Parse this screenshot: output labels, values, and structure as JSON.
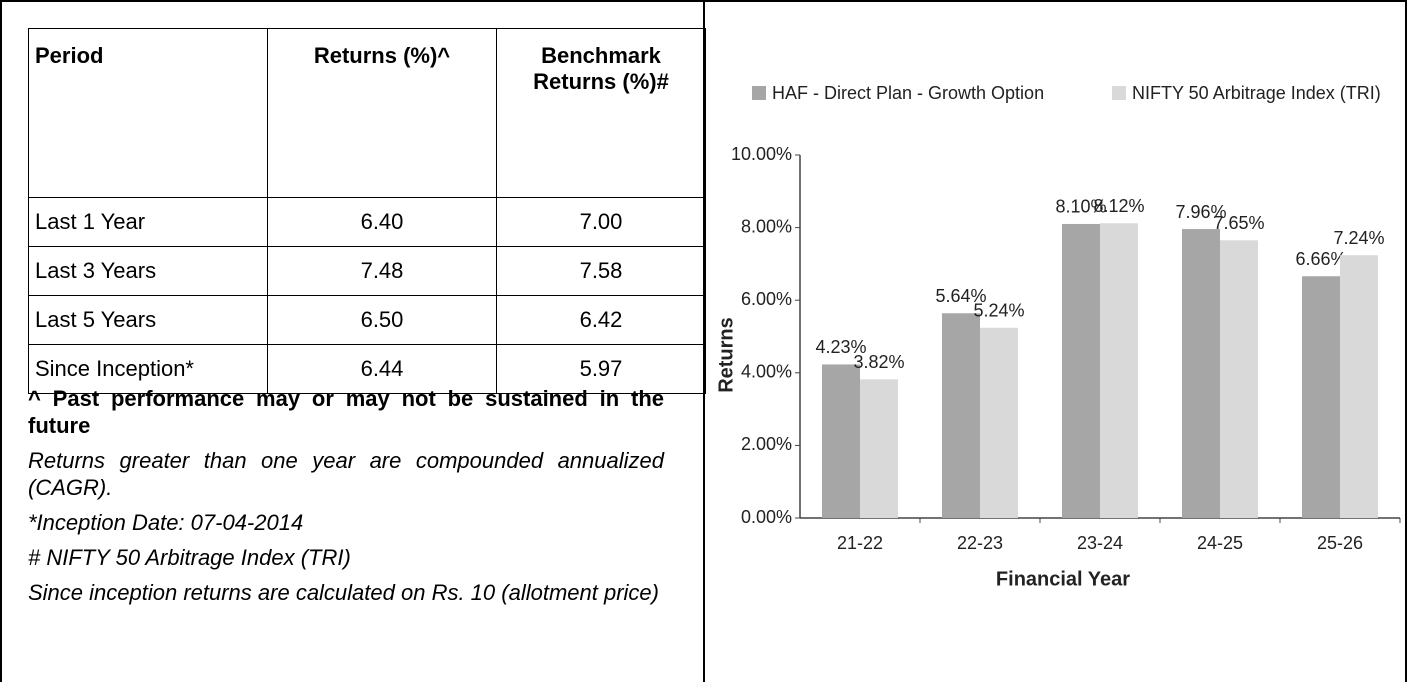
{
  "table": {
    "header": [
      "Period",
      "Returns (%)^",
      "Benchmark Returns (%)#"
    ],
    "rows": [
      [
        "Last 1 Year",
        "6.40",
        "7.00"
      ],
      [
        "Last 3 Years",
        "7.48",
        "7.58"
      ],
      [
        "Last 5 Years",
        "6.50",
        "6.42"
      ],
      [
        "Since Inception*",
        "6.44",
        "5.97"
      ]
    ]
  },
  "notes": {
    "bold": "^ Past performance may or may not be sustained in the future",
    "italic": [
      "Returns greater than one year are compounded annualized (CAGR).",
      "*Inception Date: 07-04-2014",
      "# NIFTY 50 Arbitrage Index (TRI)",
      "Since inception returns are calculated on Rs. 10 (allotment price)"
    ]
  },
  "chart_data": {
    "type": "bar",
    "x_label": "Financial Year",
    "y_label": "Returns",
    "categories": [
      "21-22",
      "22-23",
      "23-24",
      "24-25",
      "25-26"
    ],
    "series": [
      {
        "name": "HAF - Direct Plan - Growth Option",
        "color": "#a6a6a6",
        "values": [
          4.23,
          5.64,
          8.1,
          7.96,
          6.66
        ],
        "value_labels": [
          "4.23%",
          "5.64%",
          "8.10%",
          "7.96%",
          "6.66%"
        ]
      },
      {
        "name": "NIFTY 50 Arbitrage Index (TRI)",
        "color": "#d9d9d9",
        "values": [
          3.82,
          5.24,
          8.12,
          7.65,
          7.24
        ],
        "value_labels": [
          "3.82%",
          "5.24%",
          "8.12%",
          "7.65%",
          "7.24%"
        ]
      }
    ],
    "ylim": [
      0,
      10
    ],
    "yticks": [
      {
        "value": 0,
        "label": "0.00%"
      },
      {
        "value": 2,
        "label": "2.00%"
      },
      {
        "value": 4,
        "label": "4.00%"
      },
      {
        "value": 6,
        "label": "6.00%"
      },
      {
        "value": 8,
        "label": "8.00%"
      },
      {
        "value": 10,
        "label": "10.00%"
      }
    ],
    "legend": "top"
  }
}
